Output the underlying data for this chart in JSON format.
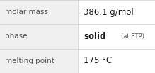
{
  "rows": [
    {
      "label": "molar mass",
      "value": "386.1 g/mol",
      "value2": null
    },
    {
      "label": "phase",
      "value": "solid",
      "value2": "(at STP)"
    },
    {
      "label": "melting point",
      "value": "175 °C",
      "value2": null
    }
  ],
  "col_split": 0.5,
  "background_color": "#f0f0f0",
  "right_col_bg": "#ffffff",
  "border_color": "#cccccc",
  "label_fontsize": 7.5,
  "value_fontsize": 8.5,
  "small_fontsize": 6.0,
  "label_color": "#505050",
  "value_color": "#1a1a1a"
}
